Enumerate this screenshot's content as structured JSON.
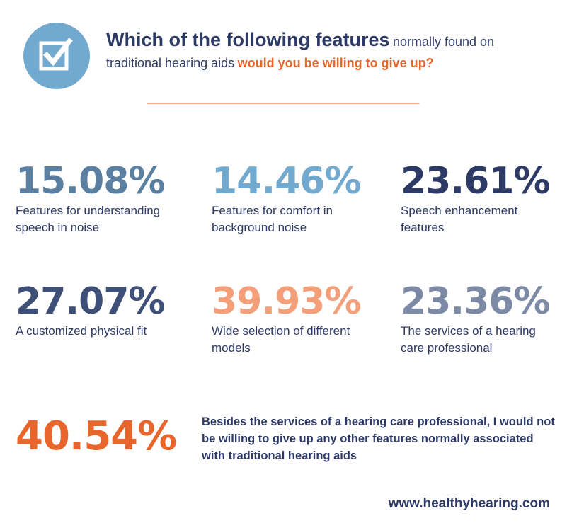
{
  "header": {
    "icon": "checkbox-check-icon",
    "title_bold": "Which of the following features",
    "title_normal": "normally found on traditional hearing aids",
    "title_accent": "would you be willing to give up?"
  },
  "colors": {
    "navy": "#2d3a66",
    "slate_blue": "#5a7fa0",
    "light_blue": "#72a9cf",
    "salmon": "#f3a07a",
    "gray_blue": "#7c8aa6",
    "orange": "#e8662b",
    "divider": "#f2b28a"
  },
  "stats": [
    {
      "value": "15.08%",
      "label": "Features for understanding speech in noise",
      "color": "#5a7fa0"
    },
    {
      "value": "14.46%",
      "label": "Features for comfort in background noise",
      "color": "#72a9cf"
    },
    {
      "value": "23.61%",
      "label": "Speech enhancement features",
      "color": "#2d3a66"
    },
    {
      "value": "27.07%",
      "label": "A customized physical fit",
      "color": "#3e4f78"
    },
    {
      "value": "39.93%",
      "label": "Wide selection of different models",
      "color": "#f3a07a"
    },
    {
      "value": "23.36%",
      "label": "The services of a hearing care professional",
      "color": "#7c8aa6"
    }
  ],
  "highlight": {
    "value": "40.54%",
    "text": "Besides the services of a hearing care professional, I would not be willing to give up any other features normally associated with traditional hearing aids"
  },
  "footer": {
    "website": "www.healthyhearing.com"
  }
}
